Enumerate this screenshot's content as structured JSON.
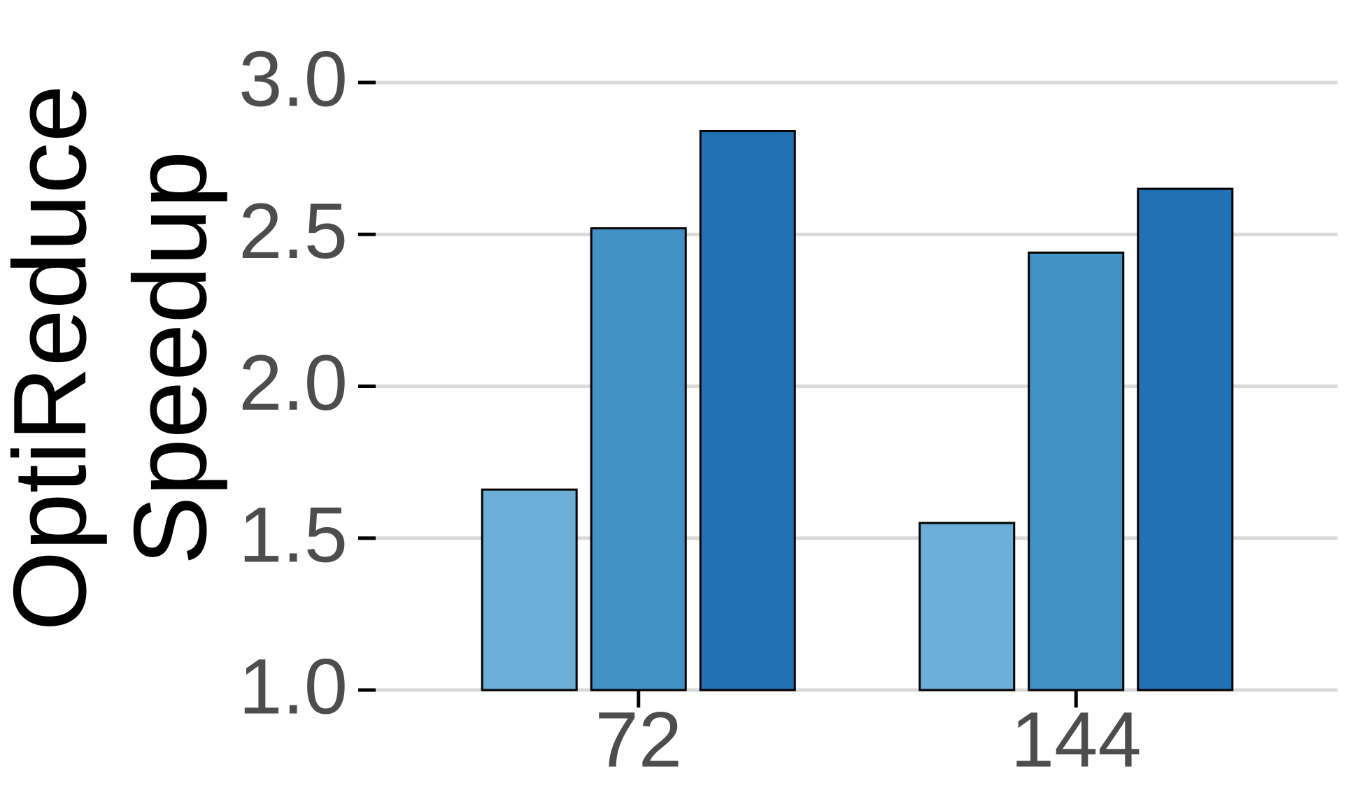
{
  "chart_data": {
    "type": "bar",
    "ylabel": [
      "OptiReduce",
      "Speedup"
    ],
    "categories": [
      "72",
      "144"
    ],
    "series": [
      {
        "color": "#6baed6",
        "values": [
          1.66,
          1.55
        ]
      },
      {
        "color": "#4292c6",
        "values": [
          2.52,
          2.44
        ]
      },
      {
        "color": "#2171b5",
        "values": [
          2.84,
          2.65
        ]
      }
    ],
    "ylim": [
      1.0,
      3.0
    ],
    "yticks": [
      {
        "value": 1.0,
        "label": "1.0"
      },
      1.5,
      {
        "value": 2.0,
        "label": "2.0"
      },
      2.5,
      {
        "value": 3.0,
        "label": "3.0"
      }
    ],
    "grid": true
  }
}
